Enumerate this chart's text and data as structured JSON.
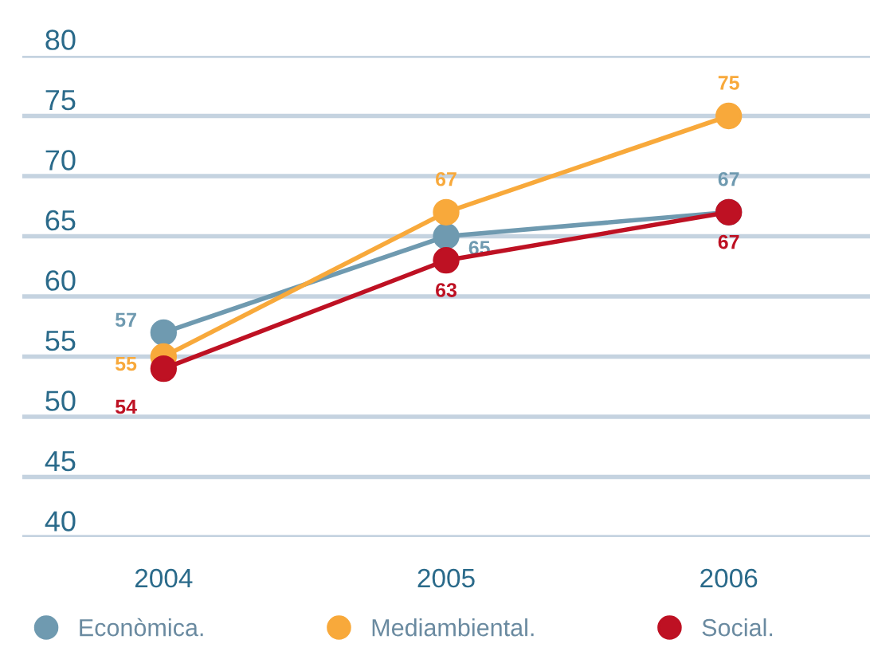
{
  "chart_data": {
    "type": "line",
    "categories": [
      "2004",
      "2005",
      "2006"
    ],
    "series": [
      {
        "name": "Econòmica.",
        "color": "#6f9ab0",
        "values": [
          57,
          65,
          67
        ]
      },
      {
        "name": "Mediambiental.",
        "color": "#f8a93b",
        "values": [
          55,
          67,
          75
        ]
      },
      {
        "name": "Social.",
        "color": "#be1123",
        "values": [
          54,
          63,
          67
        ]
      }
    ],
    "ylim": [
      40,
      80
    ],
    "yticks": [
      40,
      45,
      50,
      55,
      60,
      65,
      70,
      75,
      80
    ],
    "grid": "y",
    "legend": "bottom",
    "marker": "circle",
    "line_style": "solid",
    "data_labels": true
  }
}
